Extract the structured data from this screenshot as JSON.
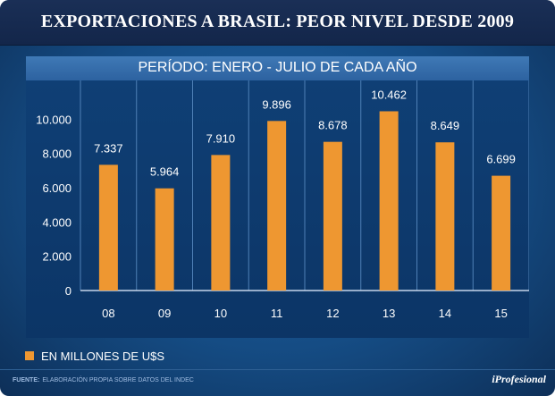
{
  "header": {
    "title": "EXPORTACIONES A BRASIL: PEOR NIVEL DESDE 2009"
  },
  "chart_data": {
    "type": "bar",
    "title": "PERÍODO: ENERO - JULIO DE CADA AÑO",
    "categories": [
      "08",
      "09",
      "10",
      "11",
      "12",
      "13",
      "14",
      "15"
    ],
    "values": [
      7337,
      5964,
      7910,
      9896,
      8678,
      10462,
      8649,
      6699
    ],
    "value_labels": [
      "7.337",
      "5.964",
      "7.910",
      "9.896",
      "8.678",
      "10.462",
      "8.649",
      "6.699"
    ],
    "yticks": [
      0,
      2000,
      4000,
      6000,
      8000,
      10000
    ],
    "ytick_labels": [
      "0",
      "2.000",
      "4.000",
      "6.000",
      "8.000",
      "10.000"
    ],
    "ylim": [
      0,
      12000
    ],
    "xlabel": "",
    "ylabel": "",
    "grid": "vertical lines between categories",
    "series": [
      {
        "name": "EN MILLONES DE U$S",
        "values": [
          7337,
          5964,
          7910,
          9896,
          8678,
          10462,
          8649,
          6699
        ]
      }
    ],
    "colors": {
      "bar": "#ee9731",
      "background": "#154c84"
    }
  },
  "legend": {
    "label": "EN MILLONES DE U$S"
  },
  "footer": {
    "source_key": "FUENTE:",
    "source_text": "ELABORACIÓN PROPIA SOBRE DATOS DEL INDEC",
    "brand": "iProfesional"
  }
}
